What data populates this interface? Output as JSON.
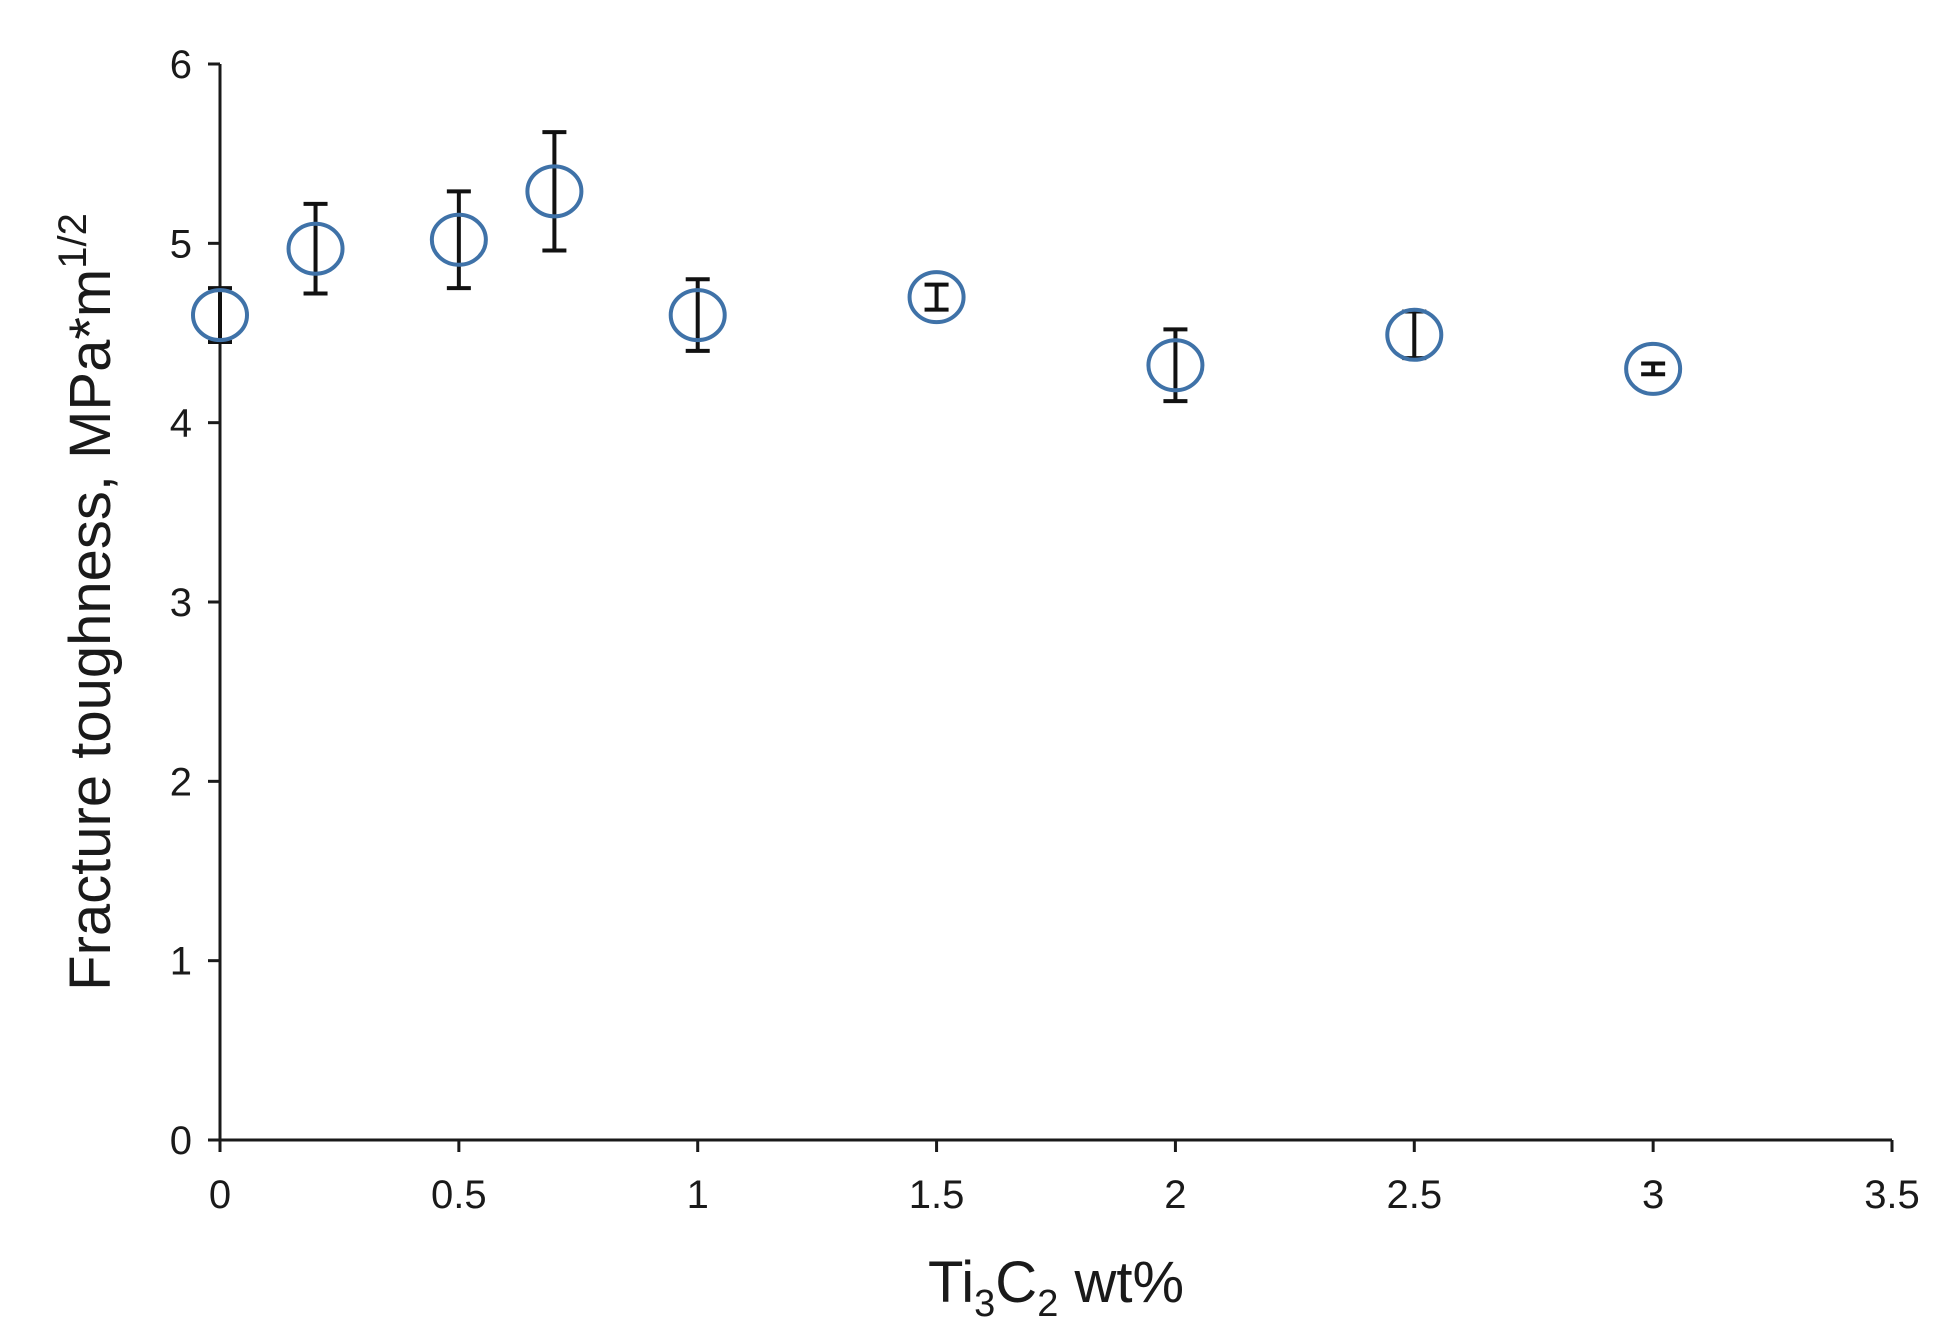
{
  "chart_data": {
    "type": "scatter",
    "xlabel": {
      "pre": "Ti",
      "sub1": "3",
      "mid": "C",
      "sub2": "2",
      "post": " wt%"
    },
    "ylabel": {
      "main": "Fracture toughness, MPa*m",
      "sup": "1/2"
    },
    "xlim": [
      0,
      3.5
    ],
    "ylim": [
      0,
      6
    ],
    "xticks": [
      "0",
      "0.5",
      "1",
      "1.5",
      "2",
      "2.5",
      "3",
      "3.5"
    ],
    "yticks": [
      "0",
      "1",
      "2",
      "3",
      "4",
      "5",
      "6"
    ],
    "grid": false,
    "legend": "none",
    "marker_color": "#3f72a8",
    "errorbar_color": "#111111",
    "points": [
      {
        "x": 0,
        "y": 4.6,
        "err_low": 0.15,
        "err_high": 0.15
      },
      {
        "x": 0.2,
        "y": 4.97,
        "err_low": 0.25,
        "err_high": 0.25
      },
      {
        "x": 0.5,
        "y": 5.02,
        "err_low": 0.27,
        "err_high": 0.27
      },
      {
        "x": 0.7,
        "y": 5.29,
        "err_low": 0.33,
        "err_high": 0.33
      },
      {
        "x": 1,
        "y": 4.6,
        "err_low": 0.2,
        "err_high": 0.2
      },
      {
        "x": 1.5,
        "y": 4.7,
        "err_low": 0.07,
        "err_high": 0.07
      },
      {
        "x": 2,
        "y": 4.32,
        "err_low": 0.2,
        "err_high": 0.2
      },
      {
        "x": 2.5,
        "y": 4.49,
        "err_low": 0.13,
        "err_high": 0.13
      },
      {
        "x": 3,
        "y": 4.3,
        "err_low": 0.03,
        "err_high": 0.03
      }
    ]
  }
}
